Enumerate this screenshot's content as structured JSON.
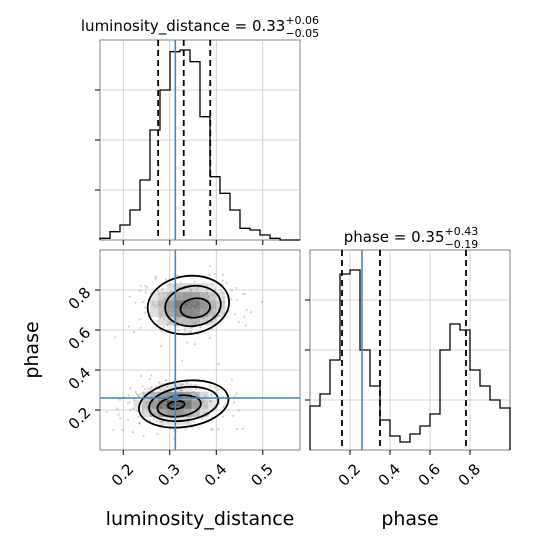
{
  "chart_data": {
    "type": "corner",
    "parameters": [
      "luminosity_distance",
      "phase"
    ],
    "xlabel": "luminosity_distance",
    "ylabel_phase": "phase",
    "xlabel_phase": "phase",
    "truth_color": "#4682b4",
    "grid": true,
    "luminosity_distance": {
      "title": {
        "prefix": "luminosity_distance = ",
        "value": "0.33",
        "upper": "+0.06",
        "lower": "−0.05"
      },
      "range": [
        0.15,
        0.58
      ],
      "ticks": [
        0.2,
        0.3,
        0.4,
        0.5
      ],
      "tick_labels": [
        "0.2",
        "0.3",
        "0.4",
        "0.5"
      ],
      "quantiles": [
        0.275,
        0.33,
        0.387
      ],
      "truth": 0.312,
      "hist_edges": [
        0.15,
        0.1715,
        0.193,
        0.2145,
        0.236,
        0.2575,
        0.279,
        0.3005,
        0.322,
        0.3435,
        0.365,
        0.3865,
        0.408,
        0.4295,
        0.451,
        0.4725,
        0.494,
        0.5155,
        0.537,
        0.5585,
        0.58
      ],
      "hist_counts": [
        0.5,
        2.5,
        4.5,
        9,
        18,
        33,
        45,
        56.5,
        57,
        53.5,
        37,
        19,
        14,
        9,
        3.5,
        3,
        1.5,
        0.5,
        0,
        0
      ],
      "hist_max": 60
    },
    "phase": {
      "title": {
        "prefix": "phase = ",
        "value": "0.35",
        "upper": "+0.43",
        "lower": "−0.19"
      },
      "range": [
        0.0,
        1.0
      ],
      "ticks": [
        0.2,
        0.4,
        0.6,
        0.8
      ],
      "tick_labels": [
        "0.2",
        "0.4",
        "0.6",
        "0.8"
      ],
      "quantiles": [
        0.16,
        0.35,
        0.78
      ],
      "truth": 0.26,
      "hist_edges": [
        0.0,
        0.05,
        0.1,
        0.15,
        0.2,
        0.25,
        0.3,
        0.35,
        0.4,
        0.45,
        0.5,
        0.55,
        0.6,
        0.65,
        0.7,
        0.75,
        0.8,
        0.85,
        0.9,
        0.95,
        1.0
      ],
      "hist_counts": [
        2.2,
        2.8,
        4.5,
        8.8,
        9.0,
        5.0,
        3.2,
        1.5,
        0.7,
        0.4,
        0.8,
        1.2,
        1.8,
        5.0,
        6.3,
        6.0,
        4.0,
        3.2,
        2.5,
        2.1
      ],
      "hist_max": 10
    },
    "joint": {
      "x": "luminosity_distance",
      "y": "phase",
      "modes": [
        {
          "x": 0.31,
          "y": 0.23,
          "sx": 0.042,
          "sy": 0.045,
          "weight": 0.55
        },
        {
          "x": 0.34,
          "y": 0.72,
          "sx": 0.045,
          "sy": 0.06,
          "weight": 0.45
        }
      ],
      "contours": [
        {
          "cx": 0.314,
          "cy": 0.225,
          "rx": 0.018,
          "ry": 0.02
        },
        {
          "cx": 0.32,
          "cy": 0.22,
          "rx": 0.047,
          "ry": 0.052
        },
        {
          "cx": 0.33,
          "cy": 0.23,
          "rx": 0.075,
          "ry": 0.083
        },
        {
          "cx": 0.33,
          "cy": 0.23,
          "rx": 0.097,
          "ry": 0.115
        },
        {
          "cx": 0.355,
          "cy": 0.71,
          "rx": 0.032,
          "ry": 0.048
        },
        {
          "cx": 0.35,
          "cy": 0.72,
          "rx": 0.06,
          "ry": 0.1
        },
        {
          "cx": 0.34,
          "cy": 0.725,
          "rx": 0.088,
          "ry": 0.145
        }
      ]
    }
  }
}
